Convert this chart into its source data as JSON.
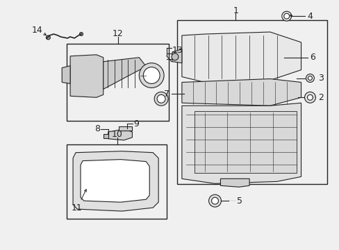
{
  "bg_color": "#f0f0f0",
  "line_color": "#222222",
  "fig_width": 4.89,
  "fig_height": 3.6,
  "dpi": 100
}
